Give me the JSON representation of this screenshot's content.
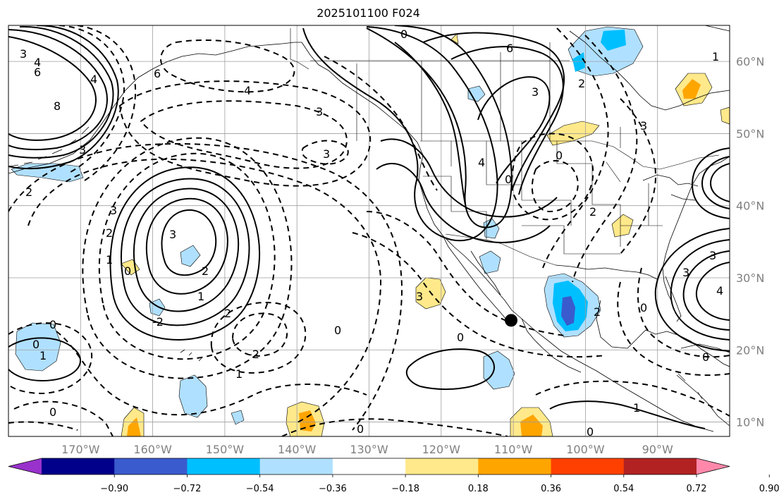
{
  "title": "2025101100 F024",
  "colors": {
    "ocean": "#ffffff",
    "coast": "#000000",
    "grid": "#9e9e9e",
    "contour": "#000000",
    "neg_light": "#b0e0ff",
    "neg_mid": "#00bfff",
    "neg_dark": "#3a5bcd",
    "pos_light": "#ffe98a",
    "pos_mid": "#ffa500",
    "label_gray": "#808080"
  },
  "map": {
    "projection": "PlateCarree",
    "lon_range": [
      -180,
      -80
    ],
    "lat_range": [
      8,
      65
    ],
    "lon_ticks": [
      "170°W",
      "160°W",
      "150°W",
      "140°W",
      "130°W",
      "120°W",
      "110°W",
      "100°W",
      "90°W"
    ],
    "lat_ticks": [
      "10°N",
      "20°N",
      "30°N",
      "40°N",
      "50°N",
      "60°N"
    ],
    "marker": {
      "lon": -110.3,
      "lat": 24.1
    }
  },
  "contour_labels": [
    "0",
    "6",
    "3",
    "4",
    "6",
    "8",
    "3",
    "4",
    "3",
    "3",
    "3",
    "1",
    "4",
    "3",
    "2",
    "3",
    "2",
    "1",
    "0",
    "3",
    "2",
    "1",
    "2",
    "0",
    "-2",
    "0",
    "1",
    "-2",
    "1",
    "0",
    "0",
    "0",
    "0",
    "6",
    "3",
    "4",
    "0",
    "0",
    "2",
    "2",
    "3",
    "3",
    "4",
    "2",
    "0",
    "0",
    "1",
    "0"
  ],
  "colorbar": {
    "colors": [
      "#9932cc",
      "#00008b",
      "#3a5bcd",
      "#00bfff",
      "#b0e0ff",
      "#ffffff",
      "#ffe98a",
      "#ffa500",
      "#ff4000",
      "#b22222",
      "#ff88aa"
    ],
    "ticks": [
      "−0.90",
      "−0.72",
      "−0.54",
      "−0.36",
      "−0.18",
      "0.18",
      "0.36",
      "0.54",
      "0.72",
      "0.90"
    ]
  }
}
